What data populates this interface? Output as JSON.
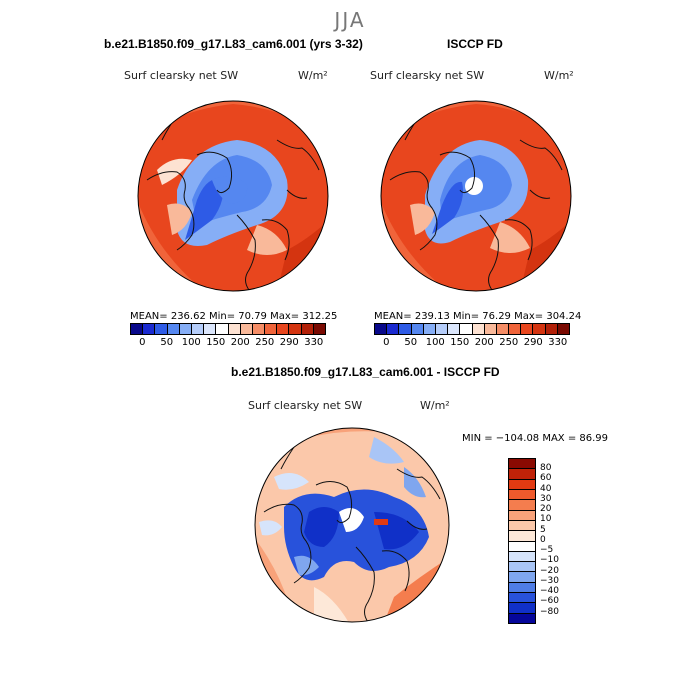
{
  "figure": {
    "season": "JJA"
  },
  "panels": [
    {
      "title": "b.e21.B1850.f09_g17.L83_cam6.001 (yrs 3-32)",
      "variable": "Surf clearsky net SW",
      "units": "W/m²",
      "stats": "MEAN= 236.62  Min=  70.79  Max= 312.25"
    },
    {
      "title": "ISCCP FD",
      "variable": "Surf clearsky net SW",
      "units": "W/m²",
      "stats": "MEAN= 239.13  Min=  76.29  Max= 304.24"
    },
    {
      "title": "b.e21.B1850.f09_g17.L83_cam6.001 - ISCCP FD",
      "variable": "Surf clearsky net SW",
      "units": "W/m²",
      "stats": "MIN = −104.08  MAX =  86.99"
    }
  ],
  "colorbar_top": {
    "labels": [
      "0",
      "50",
      "100",
      "150",
      "200",
      "250",
      "290",
      "330"
    ],
    "colors": [
      "#08088a",
      "#1a2ad0",
      "#2e5be6",
      "#5587f0",
      "#86aef6",
      "#b5cdfa",
      "#dbe6fc",
      "#ffffff",
      "#fde2d2",
      "#f9b99a",
      "#f58d66",
      "#f0643a",
      "#e8461e",
      "#d43410",
      "#b22008",
      "#7a0a02"
    ]
  },
  "colorbar_diff": {
    "labels": [
      "80",
      "60",
      "40",
      "30",
      "20",
      "10",
      "5",
      "0",
      "−5",
      "−10",
      "−20",
      "−30",
      "−40",
      "−60",
      "−80"
    ],
    "colors": [
      "#8a0a02",
      "#c02208",
      "#e23a12",
      "#ef5a2c",
      "#f47d4e",
      "#f8a27a",
      "#fbc8aa",
      "#fde8d8",
      "#ffffff",
      "#d6e4fb",
      "#a9c5f6",
      "#7fa6ef",
      "#4f7de6",
      "#2852db",
      "#1030c8",
      "#05069a"
    ]
  }
}
